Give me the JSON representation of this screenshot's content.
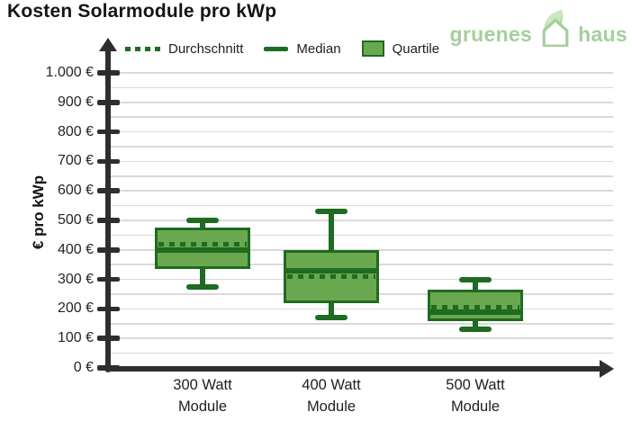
{
  "title": "Kosten Solarmodule pro kWp",
  "logo": {
    "left": "gruenes",
    "right": "haus"
  },
  "legend": [
    {
      "label": "Durchschnitt",
      "swatch": "dotted-line"
    },
    {
      "label": "Median",
      "swatch": "solid-line"
    },
    {
      "label": "Quartile",
      "swatch": "filled-box"
    }
  ],
  "colors": {
    "box_fill": "#6aa84f",
    "dark_green": "#1e6b21",
    "gridline": "#d9d9d9",
    "axis": "#2e2e2e",
    "logo_green": "#a4cf9c"
  },
  "chart_data": {
    "type": "boxplot",
    "title": "Kosten Solarmodule pro kWp",
    "ylabel": "€ pro kWp",
    "xlabel": "",
    "ylim": [
      0,
      1000
    ],
    "grid": "horizontal, every 50, light gray",
    "grid_step": 50,
    "legend_position": "top",
    "y_ticks": [
      {
        "value": 0,
        "label": "0 €"
      },
      {
        "value": 100,
        "label": "100 €"
      },
      {
        "value": 200,
        "label": "200 €"
      },
      {
        "value": 300,
        "label": "300 €"
      },
      {
        "value": 400,
        "label": "400 €"
      },
      {
        "value": 500,
        "label": "500 €"
      },
      {
        "value": 600,
        "label": "600 €"
      },
      {
        "value": 700,
        "label": "700 €"
      },
      {
        "value": 800,
        "label": "800 €"
      },
      {
        "value": 900,
        "label": "900 €"
      },
      {
        "value": 1000,
        "label": "1.000 €"
      }
    ],
    "categories": [
      "300 Watt Module",
      "400 Watt Module",
      "500 Watt Module"
    ],
    "category_lines": [
      [
        "300 Watt",
        "Module"
      ],
      [
        "400 Watt",
        "Module"
      ],
      [
        "500 Watt",
        "Module"
      ]
    ],
    "series": [
      {
        "category": "300 Watt Module",
        "min": 275,
        "q1": 335,
        "median": 400,
        "mean": 420,
        "q3": 475,
        "max": 500
      },
      {
        "category": "400 Watt Module",
        "min": 170,
        "q1": 220,
        "median": 330,
        "mean": 310,
        "q3": 400,
        "max": 530
      },
      {
        "category": "500 Watt Module",
        "min": 130,
        "q1": 160,
        "median": 190,
        "mean": 205,
        "q3": 265,
        "max": 300
      }
    ]
  }
}
